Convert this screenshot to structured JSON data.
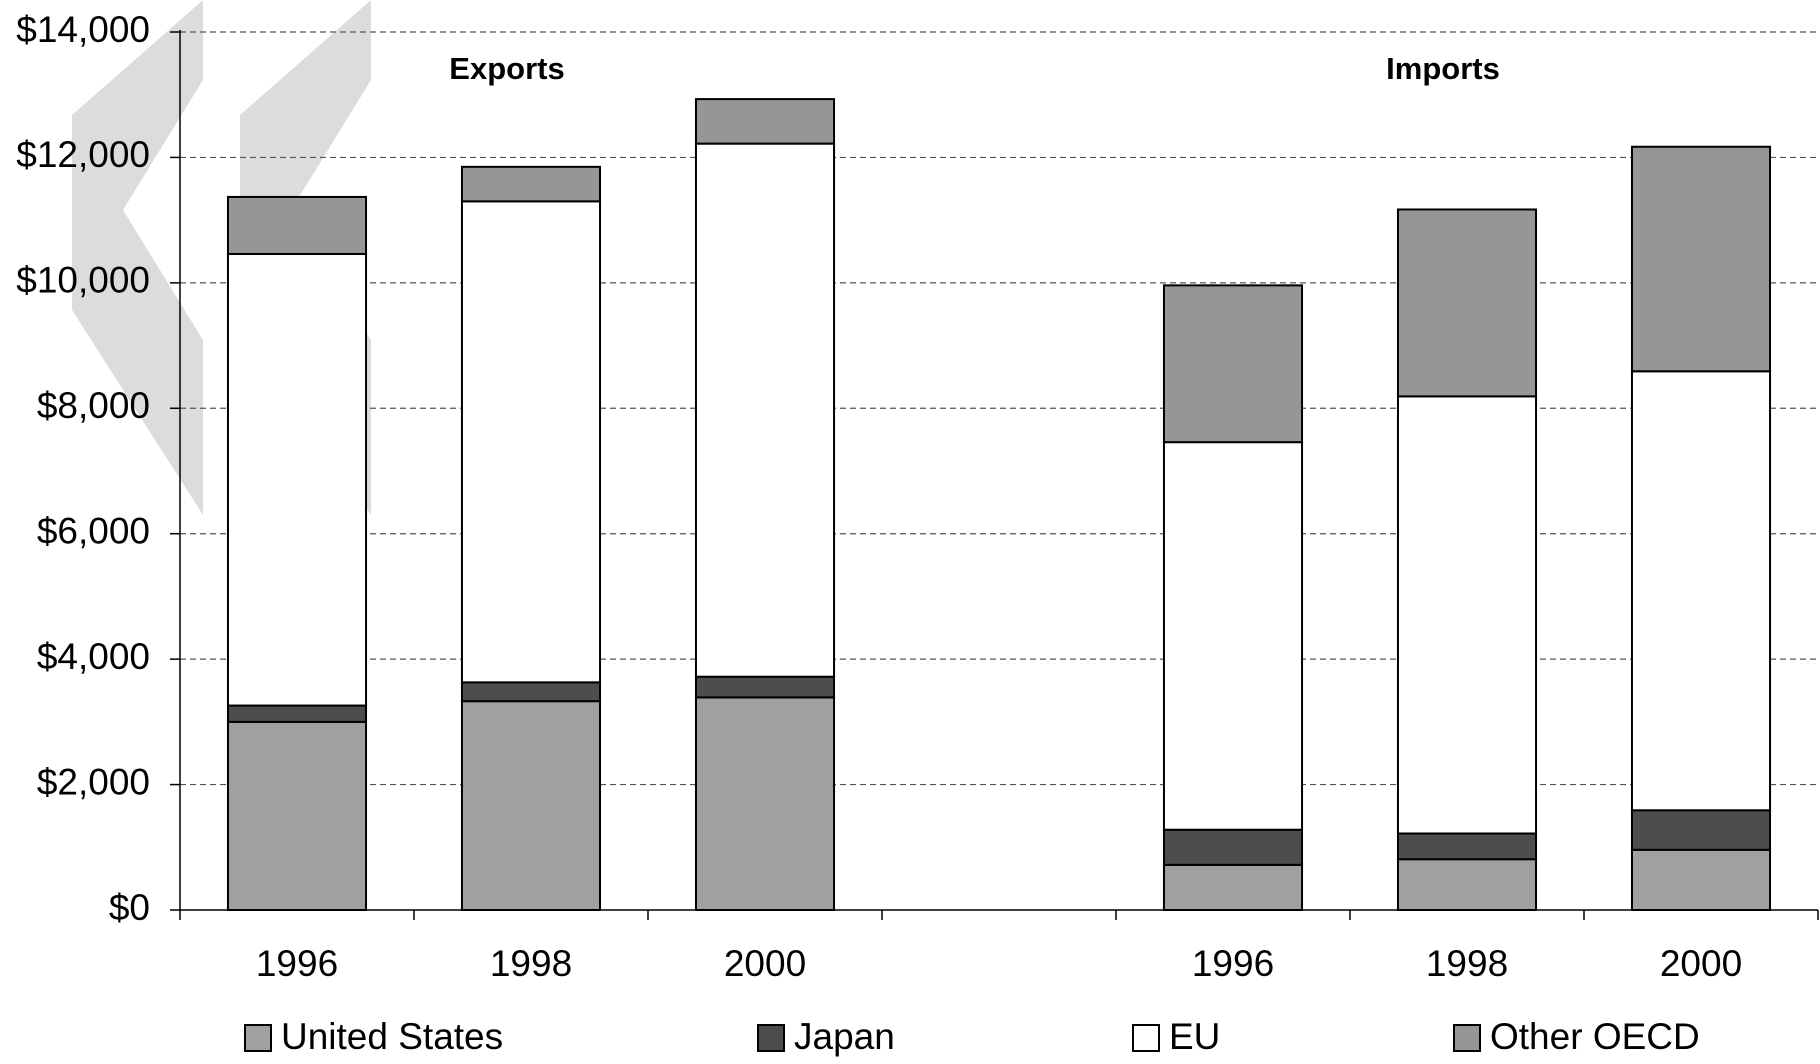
{
  "chart_data": {
    "type": "stacked_bar",
    "annotations": [
      "Exports",
      "Imports"
    ],
    "categories": [
      "1996",
      "1998",
      "2000",
      null,
      "1996",
      "1998",
      "2000"
    ],
    "series": [
      {
        "name": "United States",
        "color": "#a0a0a0",
        "values": [
          3000,
          3330,
          3390,
          null,
          720,
          810,
          960
        ]
      },
      {
        "name": "Japan",
        "color": "#4d4d4d",
        "values": [
          260,
          300,
          330,
          null,
          560,
          410,
          630
        ]
      },
      {
        "name": "EU",
        "color": "#ffffff",
        "values": [
          7200,
          7670,
          8500,
          null,
          6180,
          6970,
          7000
        ]
      },
      {
        "name": "Other OECD",
        "color": "#969696",
        "values": [
          910,
          550,
          710,
          null,
          2500,
          2980,
          3580
        ]
      }
    ],
    "ylim": [
      0,
      14000
    ],
    "yticks": [
      {
        "value": 0,
        "label": "$0"
      },
      {
        "value": 2000,
        "label": "$2,000"
      },
      {
        "value": 4000,
        "label": "$4,000"
      },
      {
        "value": 6000,
        "label": "$6,000"
      },
      {
        "value": 8000,
        "label": "$8,000"
      },
      {
        "value": 10000,
        "label": "$10,000"
      },
      {
        "value": 12000,
        "label": "$12,000"
      },
      {
        "value": 14000,
        "label": "$14,000"
      }
    ],
    "grid": true,
    "legend": "bottom"
  }
}
